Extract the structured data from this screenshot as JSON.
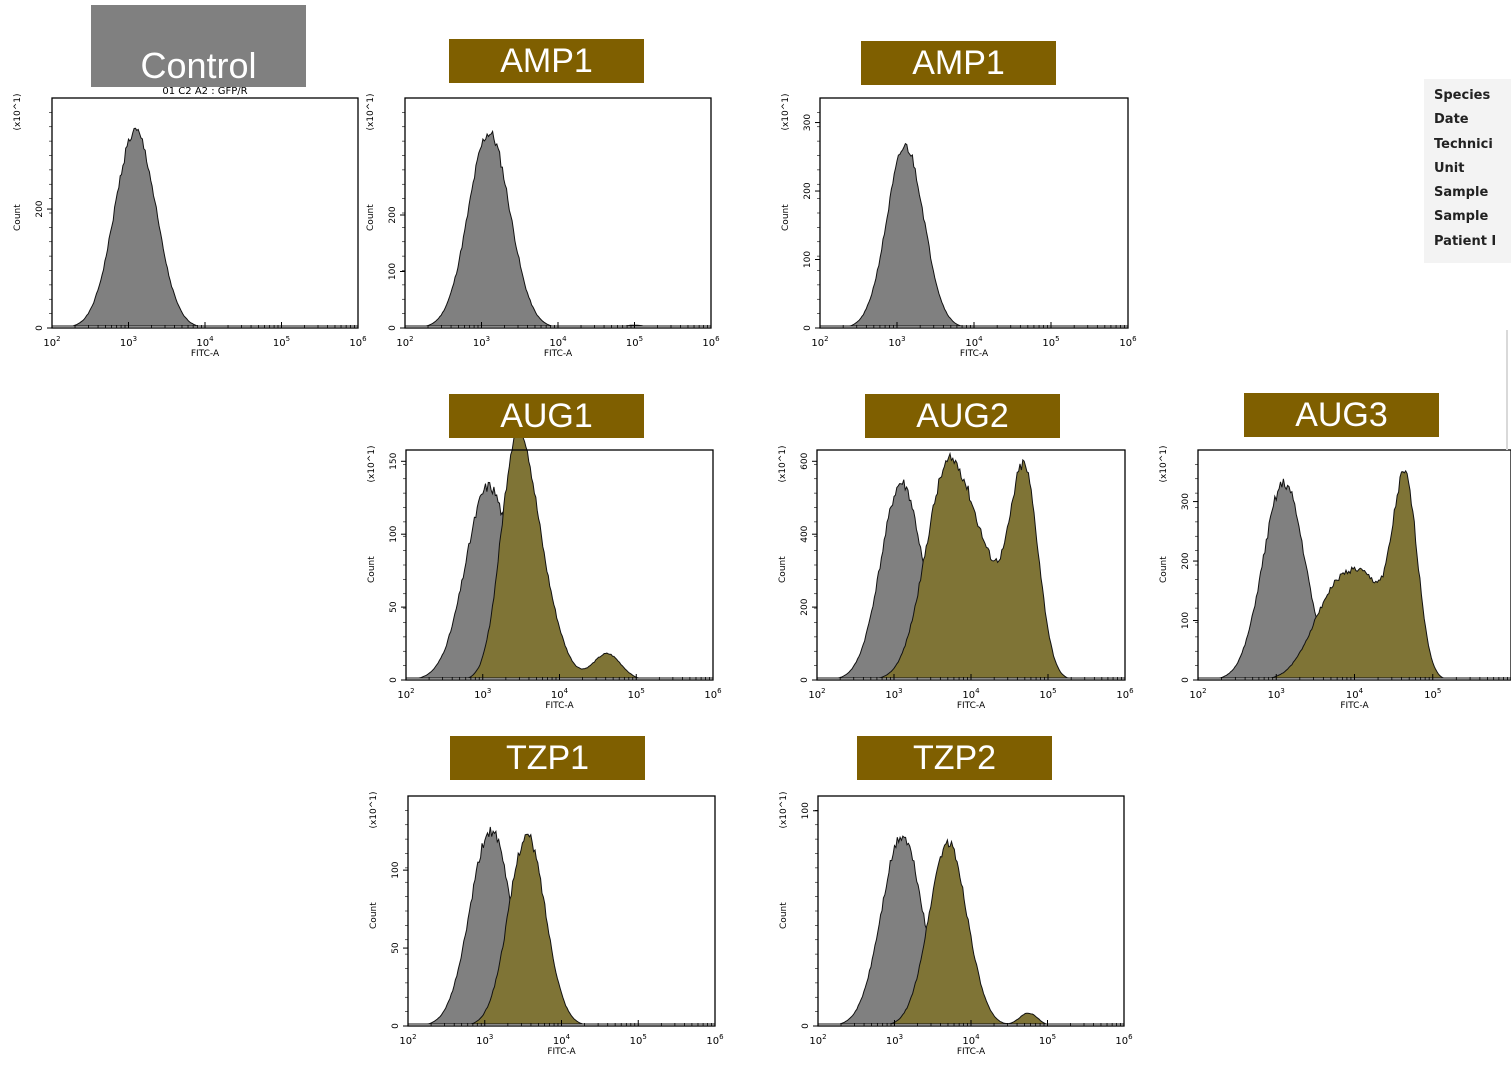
{
  "panel_labels": {
    "control": "Control",
    "amp1_a": "AMP1",
    "amp1_b": "AMP1",
    "aug1": "AUG1",
    "aug2": "AUG2",
    "aug3": "AUG3",
    "tzp1": "TZP1",
    "tzp2": "TZP2"
  },
  "control_subtitle": "01 C2 A2 : GFP/R",
  "info_fields": [
    "Species",
    "Date",
    "Technici",
    "Unit",
    "Sample",
    "Sample",
    "Patient I"
  ],
  "colors": {
    "label_bg": "#7f5f00",
    "control_label_bg": "#808080",
    "control_fill": "#808080",
    "sample_fill": "#7f7436"
  },
  "chart_data": [
    {
      "type": "area",
      "panel": "Control",
      "xlabel": "FITC-A",
      "ylabel": "Count",
      "yunit": "(x10^1)",
      "x_log": true,
      "xlim": [
        100,
        1000000
      ],
      "xticks": [
        "10^2",
        "10^3",
        "10^4",
        "10^5",
        "10^6"
      ],
      "yticks": [
        "0",
        "200"
      ],
      "ylim": [
        0,
        380
      ],
      "series": [
        {
          "color": "#808080",
          "peaks": [
            {
              "center_log10": 3.09,
              "height": 330,
              "width_log10": 0.27
            }
          ]
        }
      ]
    },
    {
      "type": "area",
      "panel": "AMP1",
      "xlabel": "FITC-A",
      "ylabel": "Count",
      "yunit": "(x10^1)",
      "x_log": true,
      "xlim": [
        100,
        1000000
      ],
      "xticks": [
        "10^2",
        "10^3",
        "10^4",
        "10^5",
        "10^6"
      ],
      "yticks": [
        "0",
        "100",
        "200"
      ],
      "ylim": [
        0,
        400
      ],
      "series": [
        {
          "color": "#808080",
          "peaks": [
            {
              "center_log10": 3.1,
              "height": 345,
              "width_log10": 0.27
            },
            {
              "center_log10": 5.0,
              "height": 5,
              "width_log10": 0.15
            }
          ]
        }
      ]
    },
    {
      "type": "area",
      "panel": "AMP1",
      "xlabel": "FITC-A",
      "ylabel": "Count",
      "yunit": "(x10^1)",
      "x_log": true,
      "xlim": [
        100,
        1000000
      ],
      "xticks": [
        "10^2",
        "10^3",
        "10^4",
        "10^5",
        "10^6"
      ],
      "yticks": [
        "0",
        "100",
        "200",
        "300"
      ],
      "ylim": [
        0,
        330
      ],
      "series": [
        {
          "color": "#808080",
          "peaks": [
            {
              "center_log10": 3.11,
              "height": 265,
              "width_log10": 0.24
            }
          ]
        }
      ]
    },
    {
      "type": "area",
      "panel": "AUG1",
      "xlabel": "FITC-A",
      "ylabel": "Count",
      "yunit": "(x10^1)",
      "x_log": true,
      "xlim": [
        100,
        1000000
      ],
      "xticks": [
        "10^2",
        "10^3",
        "10^4",
        "10^5",
        "10^6"
      ],
      "yticks": [
        "0",
        "50",
        "100",
        "150"
      ],
      "ylim": [
        0,
        155
      ],
      "series": [
        {
          "color": "#808080",
          "peaks": [
            {
              "center_log10": 3.08,
              "height": 133,
              "width_log10": 0.3
            }
          ]
        },
        {
          "color": "#7f7436",
          "peaks": [
            {
              "center_log10": 3.42,
              "height": 133,
              "width_log10": 0.2
            },
            {
              "center_log10": 3.7,
              "height": 70,
              "width_log10": 0.25
            },
            {
              "center_log10": 4.62,
              "height": 18,
              "width_log10": 0.18
            }
          ]
        }
      ]
    },
    {
      "type": "area",
      "panel": "AUG2",
      "xlabel": "FITC-A",
      "ylabel": "Count",
      "yunit": "(x10^1)",
      "x_log": true,
      "xlim": [
        100,
        1000000
      ],
      "xticks": [
        "10^2",
        "10^3",
        "10^4",
        "10^5",
        "10^6"
      ],
      "yticks": [
        "0",
        "200",
        "400",
        "600"
      ],
      "ylim": [
        0,
        620
      ],
      "series": [
        {
          "color": "#808080",
          "peaks": [
            {
              "center_log10": 3.1,
              "height": 540,
              "width_log10": 0.27
            }
          ]
        },
        {
          "color": "#7f7436",
          "peaks": [
            {
              "center_log10": 3.65,
              "height": 450,
              "width_log10": 0.28
            },
            {
              "center_log10": 4.1,
              "height": 300,
              "width_log10": 0.35
            },
            {
              "center_log10": 4.7,
              "height": 520,
              "width_log10": 0.18
            }
          ]
        }
      ]
    },
    {
      "type": "area",
      "panel": "AUG3",
      "xlabel": "FITC-A",
      "ylabel": "Count",
      "yunit": "(x10^1)",
      "x_log": true,
      "xlim": [
        100,
        1000000
      ],
      "xticks": [
        "10^2",
        "10^3",
        "10^4",
        "10^5"
      ],
      "yticks": [
        "0",
        "100",
        "200",
        "300"
      ],
      "ylim": [
        0,
        380
      ],
      "series": [
        {
          "color": "#808080",
          "peaks": [
            {
              "center_log10": 3.1,
              "height": 330,
              "width_log10": 0.27
            }
          ]
        },
        {
          "color": "#7f7436",
          "peaks": [
            {
              "center_log10": 3.75,
              "height": 140,
              "width_log10": 0.3
            },
            {
              "center_log10": 4.2,
              "height": 120,
              "width_log10": 0.25
            },
            {
              "center_log10": 4.65,
              "height": 320,
              "width_log10": 0.16
            }
          ]
        }
      ]
    },
    {
      "type": "area",
      "panel": "TZP1",
      "xlabel": "FITC-A",
      "ylabel": "Count",
      "yunit": "(x10^1)",
      "x_log": true,
      "xlim": [
        100,
        1000000
      ],
      "xticks": [
        "10^2",
        "10^3",
        "10^4",
        "10^5",
        "10^6"
      ],
      "yticks": [
        "0",
        "50",
        "100"
      ],
      "ylim": [
        0,
        145
      ],
      "series": [
        {
          "color": "#808080",
          "peaks": [
            {
              "center_log10": 3.08,
              "height": 125,
              "width_log10": 0.27
            }
          ]
        },
        {
          "color": "#7f7436",
          "peaks": [
            {
              "center_log10": 3.55,
              "height": 122,
              "width_log10": 0.24
            }
          ]
        }
      ]
    },
    {
      "type": "area",
      "panel": "TZP2",
      "xlabel": "FITC-A",
      "ylabel": "Count",
      "yunit": "(x10^1)",
      "x_log": true,
      "xlim": [
        100,
        1000000
      ],
      "xticks": [
        "10^2",
        "10^3",
        "10^4",
        "10^5",
        "10^6"
      ],
      "yticks": [
        "0",
        "100"
      ],
      "ylim": [
        0,
        105
      ],
      "series": [
        {
          "color": "#808080",
          "peaks": [
            {
              "center_log10": 3.1,
              "height": 88,
              "width_log10": 0.27
            }
          ]
        },
        {
          "color": "#7f7436",
          "peaks": [
            {
              "center_log10": 3.7,
              "height": 85,
              "width_log10": 0.25
            },
            {
              "center_log10": 4.75,
              "height": 6,
              "width_log10": 0.12
            }
          ]
        }
      ]
    }
  ]
}
